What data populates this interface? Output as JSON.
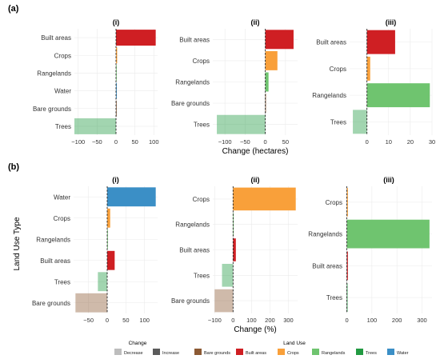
{
  "colors": {
    "Bare grounds": "#8c5a34",
    "Built areas": "#cf1f23",
    "Crops": "#f9a03a",
    "Rangelands": "#6fc46f",
    "Trees": "#229a42",
    "Water": "#3b8fc6"
  },
  "legend": {
    "change_title": "Change",
    "change_items": [
      {
        "label": "Decrease",
        "color": "#bdbdbd"
      },
      {
        "label": "Increase",
        "color": "#5b5b5b"
      }
    ],
    "landuse_title": "Land Use",
    "landuse_items": [
      "Bare grounds",
      "Built areas",
      "Crops",
      "Rangelands",
      "Trees",
      "Water"
    ]
  },
  "y_axis_title": "Land Use Type",
  "chart_data": [
    {
      "type": "bar",
      "row": "(a)",
      "title": "(i)",
      "orientation": "horizontal",
      "categories": [
        "Built areas",
        "Crops",
        "Rangelands",
        "Water",
        "Bare grounds",
        "Trees"
      ],
      "values": [
        105,
        3,
        1,
        2,
        0.5,
        -110
      ],
      "xlim": [
        -110,
        110
      ],
      "xticks": [
        -100,
        -50,
        0,
        50,
        100
      ],
      "xlabel": ""
    },
    {
      "type": "bar",
      "row": "(a)",
      "title": "(ii)",
      "orientation": "horizontal",
      "categories": [
        "Built areas",
        "Crops",
        "Rangelands",
        "Bare grounds",
        "Trees"
      ],
      "values": [
        70,
        30,
        8,
        1,
        -120
      ],
      "xlim": [
        -130,
        80
      ],
      "xticks": [
        -100,
        -50,
        0,
        50
      ],
      "xlabel": "Change (hectares)"
    },
    {
      "type": "bar",
      "row": "(a)",
      "title": "(iii)",
      "orientation": "horizontal",
      "categories": [
        "Built areas",
        "Crops",
        "Rangelands",
        "Trees"
      ],
      "values": [
        13,
        1.5,
        29,
        -6.5
      ],
      "xlim": [
        -8,
        30
      ],
      "xticks": [
        0,
        10,
        20,
        30
      ],
      "xlabel": ""
    },
    {
      "type": "bar",
      "row": "(b)",
      "title": "(i)",
      "orientation": "horizontal",
      "categories": [
        "Water",
        "Crops",
        "Rangelands",
        "Built areas",
        "Trees",
        "Bare grounds"
      ],
      "values": [
        130,
        8,
        1,
        20,
        -25,
        -85
      ],
      "xlim": [
        -90,
        135
      ],
      "xticks": [
        -50,
        0,
        50,
        100
      ],
      "xlabel": ""
    },
    {
      "type": "bar",
      "row": "(b)",
      "title": "(ii)",
      "orientation": "horizontal",
      "categories": [
        "Crops",
        "Rangelands",
        "Built areas",
        "Trees",
        "Bare grounds"
      ],
      "values": [
        340,
        3,
        15,
        -60,
        -100
      ],
      "xlim": [
        -110,
        350
      ],
      "xticks": [
        -100,
        0,
        100,
        200,
        300
      ],
      "xlabel": "Change (%)"
    },
    {
      "type": "bar",
      "row": "(b)",
      "title": "(iii)",
      "orientation": "horizontal",
      "categories": [
        "Crops",
        "Rangelands",
        "Built areas",
        "Trees"
      ],
      "values": [
        4,
        330,
        4,
        1
      ],
      "xlim": [
        -5,
        340
      ],
      "xticks": [
        0,
        100,
        200,
        300
      ],
      "xlabel": ""
    }
  ]
}
